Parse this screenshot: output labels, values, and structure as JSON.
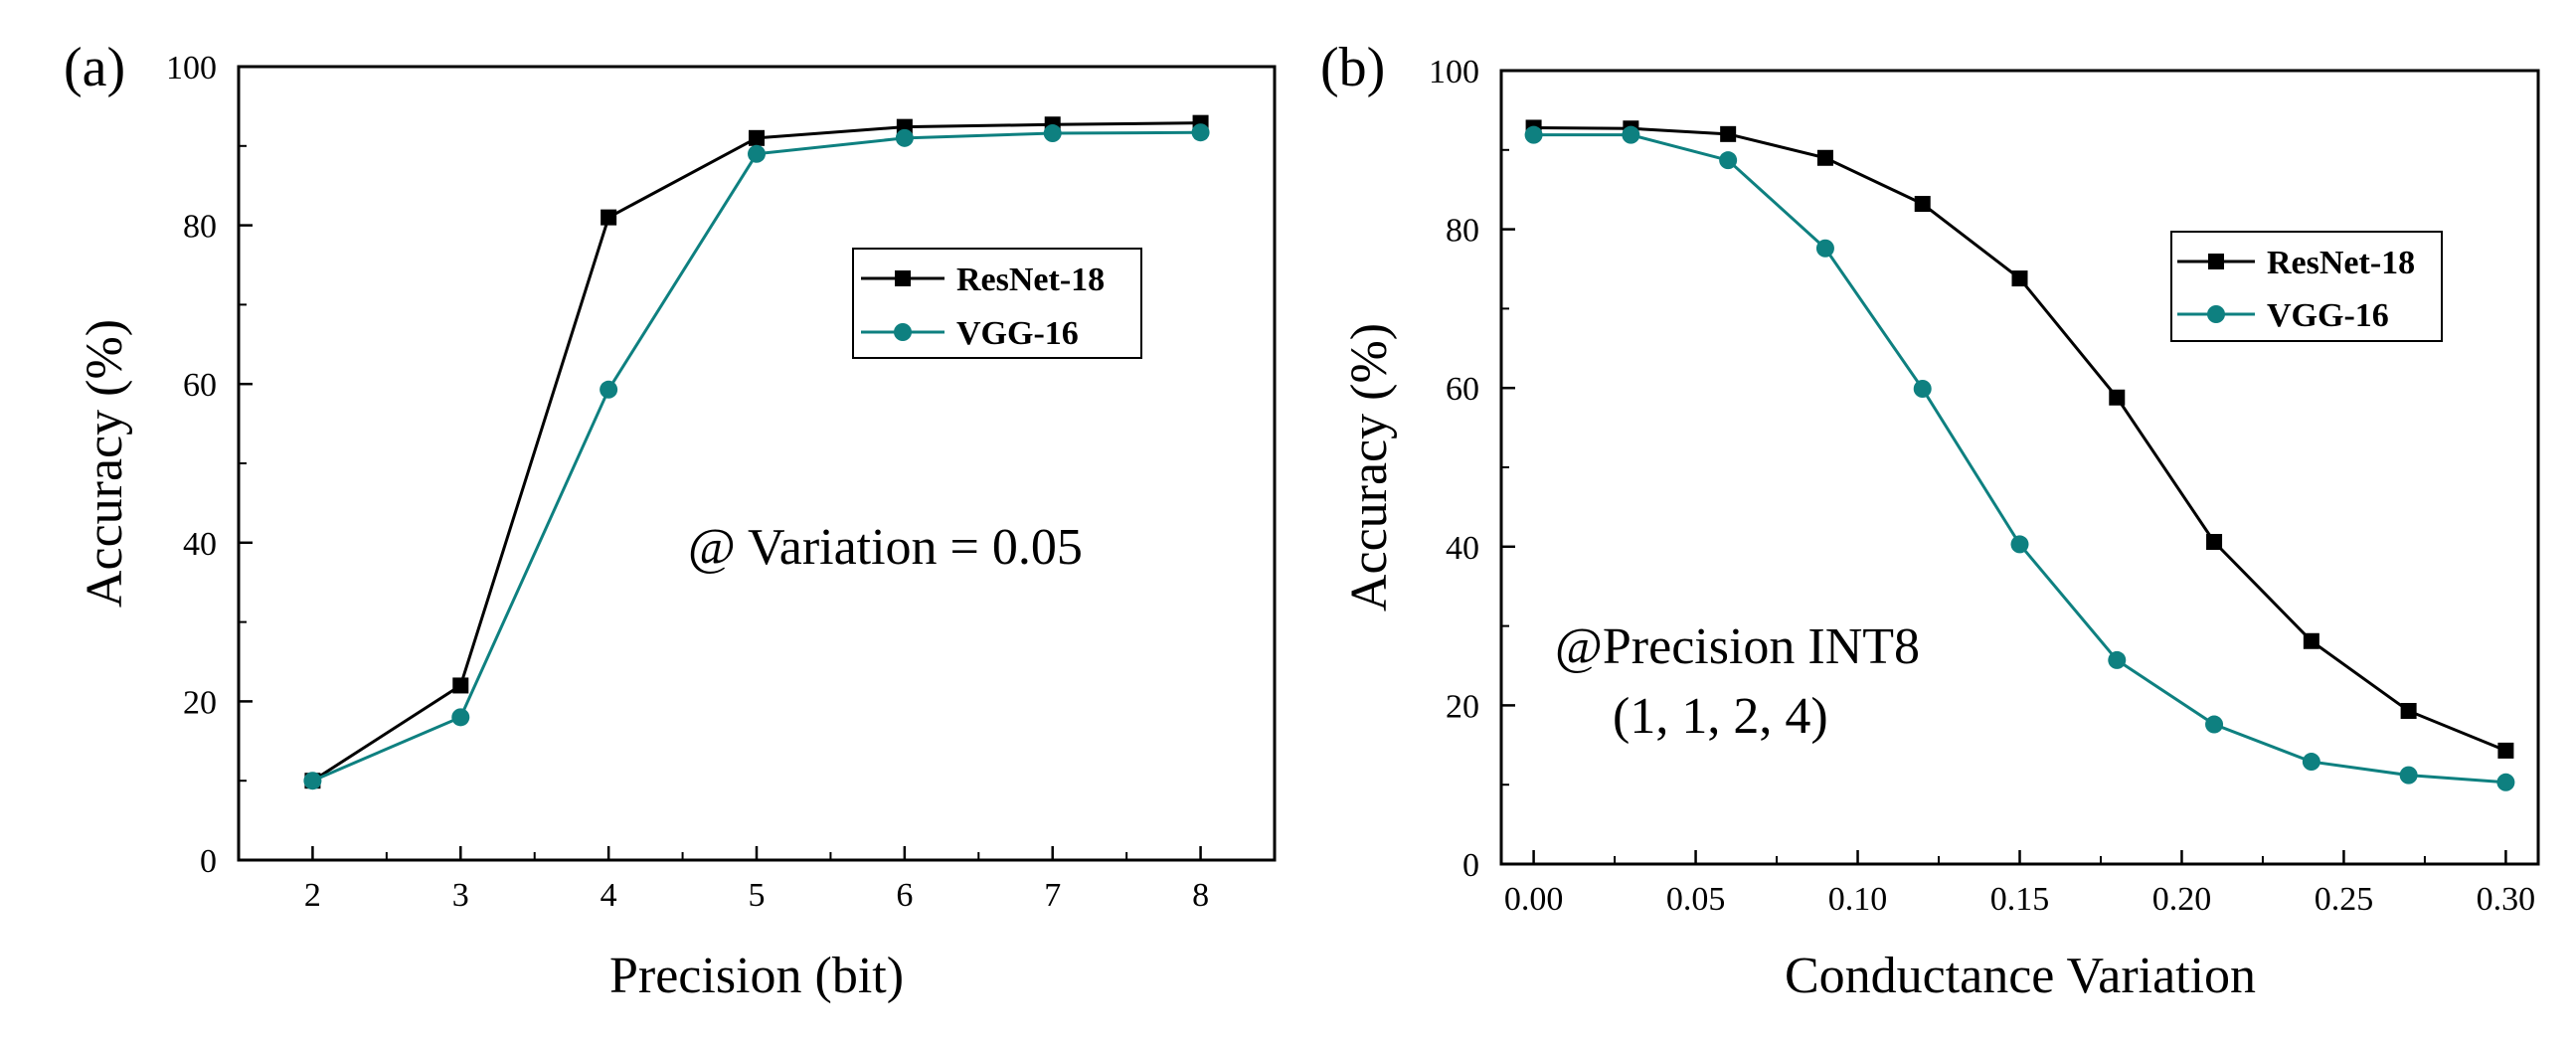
{
  "chart_data": [
    {
      "type": "line",
      "panel_label": "(a)",
      "xlabel": "Precision (bit)",
      "ylabel": "Accuracy (%)",
      "xlim": [
        1.5,
        8.5
      ],
      "ylim": [
        0,
        100
      ],
      "x_ticks": [
        "2",
        "3",
        "4",
        "5",
        "6",
        "7",
        "8"
      ],
      "y_ticks": [
        "0",
        "20",
        "40",
        "60",
        "80",
        "100"
      ],
      "x": [
        2,
        3,
        4,
        5,
        6,
        7,
        8
      ],
      "series": [
        {
          "name": "ResNet-18",
          "color": "#000000",
          "marker": "square",
          "values": [
            10,
            22,
            81,
            91,
            92.4,
            92.7,
            92.9
          ]
        },
        {
          "name": "VGG-16",
          "color": "#0e8080",
          "marker": "circle",
          "values": [
            10,
            18,
            59.3,
            89,
            91,
            91.6,
            91.7
          ]
        }
      ],
      "annotation": [
        "@ Variation = 0.05"
      ],
      "legend_position": "top-right",
      "grid": false
    },
    {
      "type": "line",
      "panel_label": "(b)",
      "xlabel": "Conductance Variation",
      "ylabel": "Accuracy (%)",
      "xlim": [
        -0.01,
        0.31
      ],
      "ylim": [
        0,
        100
      ],
      "x_ticks": [
        "0.00",
        "0.05",
        "0.10",
        "0.15",
        "0.20",
        "0.25",
        "0.30"
      ],
      "y_ticks": [
        "0",
        "20",
        "40",
        "60",
        "80",
        "100"
      ],
      "x": [
        0,
        0.03,
        0.06,
        0.09,
        0.12,
        0.15,
        0.18,
        0.21,
        0.24,
        0.27,
        0.3
      ],
      "series": [
        {
          "name": "ResNet-18",
          "color": "#000000",
          "marker": "square",
          "values": [
            92.8,
            92.7,
            92,
            89,
            83.2,
            73.8,
            58.8,
            40.6,
            28.1,
            19.3,
            14.3
          ]
        },
        {
          "name": "VGG-16",
          "color": "#0e8080",
          "marker": "circle",
          "values": [
            91.9,
            91.9,
            88.7,
            77.6,
            59.9,
            40.3,
            25.7,
            17.6,
            12.9,
            11.2,
            10.3
          ]
        }
      ],
      "annotation": [
        "@Precision INT8",
        "(1, 1, 2, 4)"
      ],
      "legend_position": "top-right",
      "grid": false
    }
  ]
}
